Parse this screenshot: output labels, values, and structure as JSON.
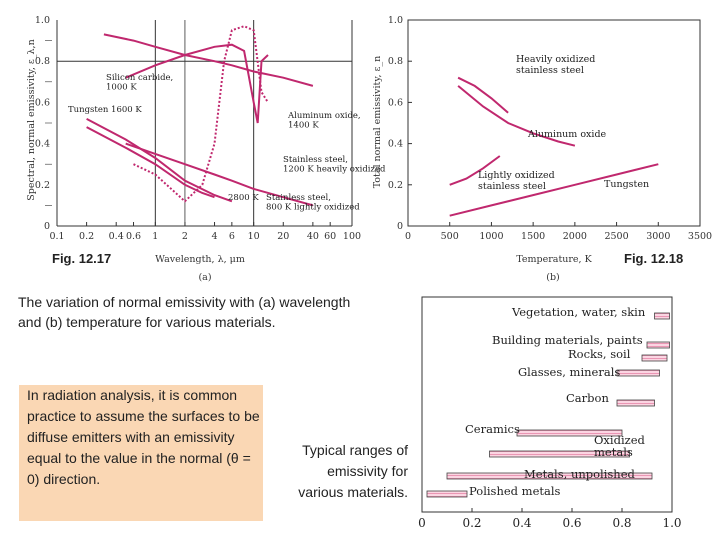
{
  "captions": {
    "fig_a_label": "Fig. 12.17",
    "fig_b_label": "Fig. 12.18",
    "main": "The variation of normal emissivity with (a) wavelength and (b) temperature for various materials.",
    "note": "In radiation analysis, it is common practice to assume the surfaces to be diffuse emitters with an emissivity equal to the value in the normal (θ = 0) direction.",
    "ranges": "Typical ranges of emissivity for various materials."
  },
  "colors": {
    "curve": "#c0286e",
    "bar_fill": "#f4b4cc",
    "axis": "#333333",
    "note_bg": "#fad7b4"
  },
  "chart_data": [
    {
      "type": "line",
      "xlabel": "Wavelength, λ, μm",
      "ylabel": "Spectral, normal emissivity, ε_λ,n",
      "sublabel": "(a)",
      "x_scale": "log",
      "xlim": [
        0.1,
        100
      ],
      "ylim": [
        0,
        1.0
      ],
      "x_ticks": [
        "0.1",
        "0.2",
        "0.4",
        "0.6",
        "1",
        "2",
        "4",
        "6",
        "10",
        "20",
        "40",
        "60",
        "100"
      ],
      "y_ticks": [
        "0",
        "0.2",
        "0.4",
        "0.6",
        "0.8",
        "1.0"
      ],
      "grid": true,
      "annotations": [
        "Silicon carbide, 1000 K",
        "Tungsten 1600 K",
        "Aluminum oxide, 1400 K",
        "Stainless steel, 1200 K heavily oxidized",
        "2800 K",
        "Stainless steel, 800 K lightly oxidized"
      ],
      "series": [
        {
          "name": "Silicon carbide, 1000 K",
          "style": "solid",
          "x": [
            0.5,
            1,
            2,
            4,
            6,
            8,
            10,
            11,
            12,
            14
          ],
          "y": [
            0.72,
            0.78,
            0.83,
            0.87,
            0.88,
            0.85,
            0.6,
            0.5,
            0.8,
            0.83
          ]
        },
        {
          "name": "Aluminum oxide, 1400 K",
          "style": "dotted",
          "x": [
            0.6,
            1,
            2,
            3,
            4,
            5,
            6,
            8,
            10,
            12,
            14
          ],
          "y": [
            0.3,
            0.25,
            0.12,
            0.2,
            0.4,
            0.8,
            0.95,
            0.97,
            0.95,
            0.65,
            0.6
          ]
        },
        {
          "name": "Stainless steel, 1200 K heavily oxidized",
          "style": "solid",
          "x": [
            0.3,
            0.6,
            1,
            2,
            4,
            6,
            10,
            20,
            40
          ],
          "y": [
            0.93,
            0.9,
            0.87,
            0.83,
            0.8,
            0.78,
            0.75,
            0.72,
            0.68
          ]
        },
        {
          "name": "Tungsten 1600 K",
          "style": "solid",
          "x": [
            0.2,
            0.5,
            1,
            2,
            4,
            6
          ],
          "y": [
            0.52,
            0.42,
            0.33,
            0.22,
            0.15,
            0.12
          ]
        },
        {
          "name": "Tungsten 2800 K",
          "style": "solid",
          "x": [
            0.2,
            0.5,
            1,
            2,
            3,
            4
          ],
          "y": [
            0.48,
            0.38,
            0.3,
            0.2,
            0.16,
            0.14
          ]
        },
        {
          "name": "Stainless steel, 800 K lightly oxidized",
          "style": "solid",
          "x": [
            0.5,
            1,
            2,
            4,
            6,
            10,
            20,
            40
          ],
          "y": [
            0.4,
            0.35,
            0.3,
            0.25,
            0.22,
            0.18,
            0.14,
            0.1
          ]
        }
      ]
    },
    {
      "type": "line",
      "xlabel": "Temperature, K",
      "ylabel": "Total normal emissivity, ε_n",
      "sublabel": "(b)",
      "xlim": [
        0,
        3500
      ],
      "ylim": [
        0,
        1.0
      ],
      "x_ticks": [
        "0",
        "500",
        "1000",
        "1500",
        "2000",
        "2500",
        "3000",
        "3500"
      ],
      "y_ticks": [
        "0",
        "0.2",
        "0.4",
        "0.6",
        "0.8",
        "1.0"
      ],
      "grid": false,
      "series": [
        {
          "name": "Heavily oxidized stainless steel",
          "x": [
            600,
            800,
            1000,
            1200
          ],
          "y": [
            0.72,
            0.68,
            0.62,
            0.55
          ]
        },
        {
          "name": "Aluminum oxide",
          "x": [
            600,
            900,
            1200,
            1500,
            1800,
            2000
          ],
          "y": [
            0.68,
            0.58,
            0.5,
            0.45,
            0.41,
            0.39
          ]
        },
        {
          "name": "Lightly oxidized stainless steel",
          "x": [
            500,
            700,
            900,
            1100
          ],
          "y": [
            0.2,
            0.23,
            0.28,
            0.34
          ]
        },
        {
          "name": "Tungsten",
          "x": [
            500,
            1000,
            1500,
            2000,
            2500,
            3000
          ],
          "y": [
            0.05,
            0.1,
            0.15,
            0.2,
            0.25,
            0.3
          ]
        }
      ]
    },
    {
      "type": "bar",
      "orientation": "horizontal",
      "xlim": [
        0,
        1.0
      ],
      "x_ticks": [
        "0",
        "0.2",
        "0.4",
        "0.6",
        "0.8",
        "1.0"
      ],
      "categories": [
        "Vegetation, water, skin",
        "Building materials, paints",
        "Rocks, soil",
        "Glasses, minerals",
        "Carbon",
        "Ceramics",
        "Oxidized metals",
        "Metals, unpolished",
        "Polished metals"
      ],
      "ranges": [
        [
          0.93,
          0.99
        ],
        [
          0.9,
          0.99
        ],
        [
          0.88,
          0.98
        ],
        [
          0.78,
          0.95
        ],
        [
          0.78,
          0.93
        ],
        [
          0.38,
          0.8
        ],
        [
          0.27,
          0.83
        ],
        [
          0.1,
          0.92
        ],
        [
          0.02,
          0.18
        ]
      ]
    }
  ]
}
